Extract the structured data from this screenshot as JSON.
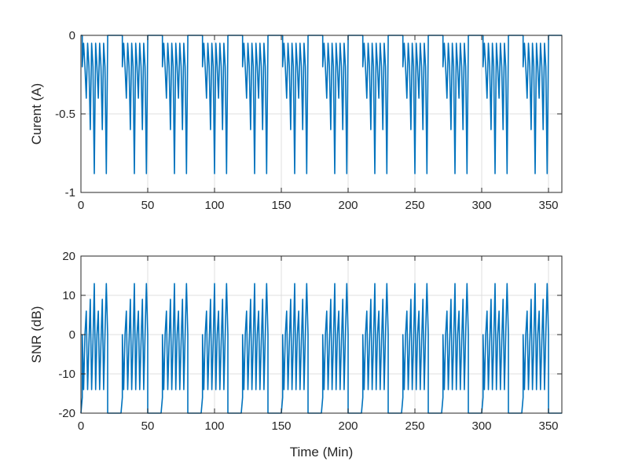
{
  "chart_data": [
    {
      "type": "line",
      "ylabel": "Curent (A)",
      "xlabel": "",
      "xlim": [
        0,
        360
      ],
      "ylim": [
        -1,
        0
      ],
      "xticks": [
        "0",
        "50",
        "100",
        "150",
        "200",
        "250",
        "300",
        "350"
      ],
      "yticks": [
        "-1",
        "-0.5",
        "0"
      ],
      "grid": true,
      "color": "#0072BD",
      "period_min": 30,
      "cycles": 12,
      "series": [
        {
          "pattern": [
            {
              "t": 0,
              "v": 0
            },
            {
              "t": 1.0,
              "v": 0
            },
            {
              "t": 1.0,
              "v": -0.2
            },
            {
              "t": 2.0,
              "v": -0.05
            },
            {
              "t": 3.0,
              "v": -0.2
            },
            {
              "t": 4.0,
              "v": -0.4
            },
            {
              "t": 5.0,
              "v": -0.05
            },
            {
              "t": 6.0,
              "v": -0.2
            },
            {
              "t": 7.0,
              "v": -0.6
            },
            {
              "t": 8.0,
              "v": -0.05
            },
            {
              "t": 9.0,
              "v": -0.2
            },
            {
              "t": 10.0,
              "v": -0.88
            },
            {
              "t": 11.0,
              "v": -0.05
            },
            {
              "t": 12.0,
              "v": -0.2
            },
            {
              "t": 13.0,
              "v": -0.4
            },
            {
              "t": 14.0,
              "v": -0.05
            },
            {
              "t": 15.0,
              "v": -0.2
            },
            {
              "t": 16.0,
              "v": -0.6
            },
            {
              "t": 17.0,
              "v": -0.05
            },
            {
              "t": 18.0,
              "v": -0.2
            },
            {
              "t": 19.0,
              "v": -0.88
            },
            {
              "t": 20.0,
              "v": -0.05
            },
            {
              "t": 20.0,
              "v": 0
            },
            {
              "t": 30,
              "v": 0
            }
          ]
        }
      ]
    },
    {
      "type": "line",
      "ylabel": "SNR (dB)",
      "xlabel": "Time (Min)",
      "xlim": [
        0,
        360
      ],
      "ylim": [
        -20,
        20
      ],
      "xticks": [
        "0",
        "50",
        "100",
        "150",
        "200",
        "250",
        "300",
        "350"
      ],
      "yticks": [
        "-20",
        "-10",
        "0",
        "10",
        "20"
      ],
      "grid": true,
      "color": "#0072BD",
      "period_min": 30,
      "cycles": 12,
      "series": [
        {
          "pattern": [
            {
              "t": 0,
              "v": -20
            },
            {
              "t": 1.0,
              "v": -16
            },
            {
              "t": 1.0,
              "v": 0
            },
            {
              "t": 2.0,
              "v": -14
            },
            {
              "t": 3.0,
              "v": 0
            },
            {
              "t": 4.0,
              "v": 6
            },
            {
              "t": 5.0,
              "v": -14
            },
            {
              "t": 6.0,
              "v": -2
            },
            {
              "t": 7.0,
              "v": 9
            },
            {
              "t": 8.0,
              "v": -14
            },
            {
              "t": 9.0,
              "v": -2
            },
            {
              "t": 10.0,
              "v": 13
            },
            {
              "t": 11.0,
              "v": -14
            },
            {
              "t": 12.0,
              "v": 0
            },
            {
              "t": 13.0,
              "v": 6
            },
            {
              "t": 14.0,
              "v": -14
            },
            {
              "t": 15.0,
              "v": -2
            },
            {
              "t": 16.0,
              "v": 9
            },
            {
              "t": 17.0,
              "v": -14
            },
            {
              "t": 18.0,
              "v": 0
            },
            {
              "t": 19.0,
              "v": 13
            },
            {
              "t": 20.0,
              "v": 0
            },
            {
              "t": 20.0,
              "v": -20
            },
            {
              "t": 30,
              "v": -20
            }
          ]
        }
      ]
    }
  ]
}
